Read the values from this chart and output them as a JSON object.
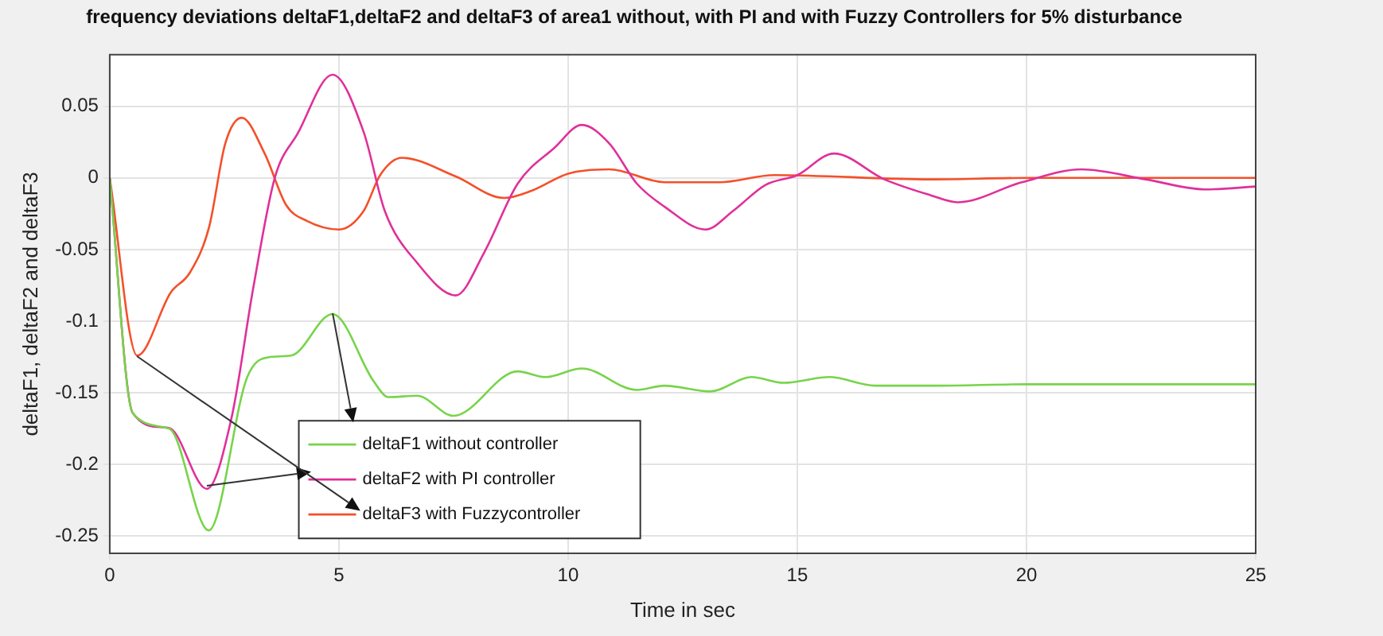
{
  "chart_data": {
    "type": "line",
    "title": "frequency deviations deltaF1,deltaF2 and deltaF3 of area1 without, with PI and with Fuzzy Controllers for 5% disturbance",
    "xlabel": "Time in sec",
    "ylabel": "deltaF1, deltaF2 and deltaF3",
    "xlim": [
      0,
      25
    ],
    "xticks": [
      0,
      5,
      10,
      15,
      20,
      25
    ],
    "ylim": [
      -0.262,
      0.086
    ],
    "yticks": [
      -0.25,
      -0.2,
      -0.15,
      -0.1,
      -0.05,
      0,
      0.05
    ],
    "grid": true,
    "legend": "bottom",
    "marker": "none",
    "line_style": "solid",
    "series": [
      {
        "name": "deltaF1 without controller",
        "color": "#77d44a",
        "x": [
          0,
          0.5,
          1.3,
          2.16,
          3.0,
          3.5,
          3.96,
          4.86,
          5.76,
          6.08,
          6.7,
          7.5,
          8.9,
          9.5,
          10.3,
          11.5,
          12.1,
          13.1,
          14.0,
          14.7,
          15.7,
          16.7,
          18,
          20,
          22,
          25
        ],
        "values": [
          0,
          -0.164,
          -0.175,
          -0.246,
          -0.139,
          -0.125,
          -0.124,
          -0.095,
          -0.142,
          -0.153,
          -0.152,
          -0.166,
          -0.135,
          -0.139,
          -0.133,
          -0.148,
          -0.145,
          -0.149,
          -0.139,
          -0.143,
          -0.139,
          -0.145,
          -0.145,
          -0.144,
          -0.144,
          -0.144
        ]
      },
      {
        "name": "deltaF2 with PI controller",
        "color": "#e0309a",
        "x": [
          0,
          0.5,
          1.15,
          1.33,
          2.12,
          2.66,
          3.13,
          3.6,
          4.1,
          4.86,
          5.54,
          6.0,
          6.7,
          7.55,
          8.17,
          8.9,
          9.7,
          10.3,
          10.9,
          11.5,
          12.1,
          13.0,
          13.6,
          14.3,
          15.0,
          15.8,
          16.9,
          17.9,
          18.5,
          19.9,
          21.2,
          22.6,
          23.9,
          25
        ],
        "values": [
          0,
          -0.164,
          -0.174,
          -0.175,
          -0.217,
          -0.167,
          -0.077,
          0,
          0.031,
          0.072,
          0.032,
          -0.023,
          -0.059,
          -0.082,
          -0.052,
          -0.004,
          0.021,
          0.037,
          0.024,
          -0.004,
          -0.02,
          -0.036,
          -0.023,
          -0.005,
          0.002,
          0.017,
          -0.001,
          -0.012,
          -0.017,
          -0.003,
          0.006,
          -0.001,
          -0.008,
          -0.006
        ]
      },
      {
        "name": "deltaF3 with Fuzzycontroller",
        "color": "#f4502a",
        "x": [
          0,
          0.6,
          1.33,
          1.75,
          2.17,
          2.52,
          2.88,
          3.38,
          3.85,
          4.3,
          5.0,
          5.54,
          5.9,
          6.37,
          7.55,
          8.6,
          9.2,
          10.0,
          10.9,
          12.1,
          13.3,
          14.5,
          17.9,
          20,
          25
        ],
        "values": [
          0,
          -0.124,
          -0.08,
          -0.066,
          -0.034,
          0.024,
          0.042,
          0.017,
          -0.019,
          -0.03,
          -0.036,
          -0.023,
          0.002,
          0.014,
          0.001,
          -0.014,
          -0.009,
          0.003,
          0.006,
          -0.003,
          -0.003,
          0.002,
          -0.001,
          0,
          0
        ]
      }
    ]
  }
}
